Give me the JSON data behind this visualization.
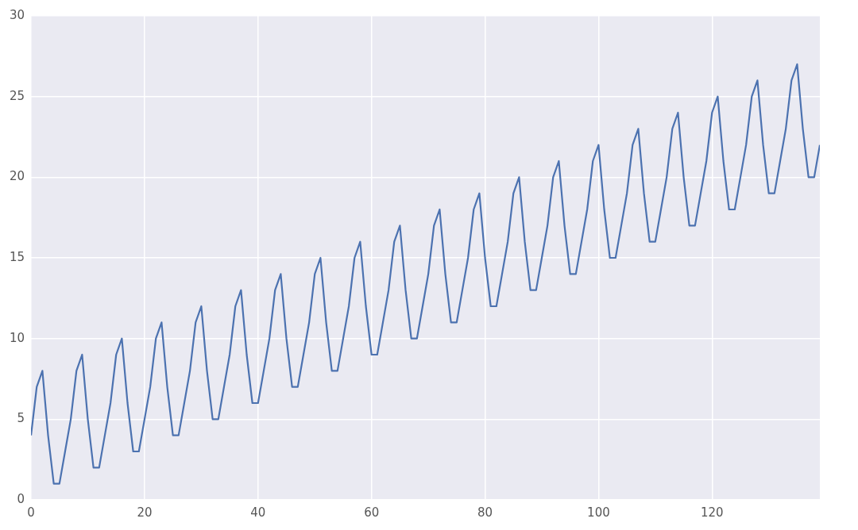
{
  "chart_data": {
    "type": "line",
    "x": [
      0,
      1,
      2,
      3,
      4,
      5,
      6,
      7,
      8,
      9,
      10,
      11,
      12,
      13,
      14,
      15,
      16,
      17,
      18,
      19,
      20,
      21,
      22,
      23,
      24,
      25,
      26,
      27,
      28,
      29,
      30,
      31,
      32,
      33,
      34,
      35,
      36,
      37,
      38,
      39,
      40,
      41,
      42,
      43,
      44,
      45,
      46,
      47,
      48,
      49,
      50,
      51,
      52,
      53,
      54,
      55,
      56,
      57,
      58,
      59,
      60,
      61,
      62,
      63,
      64,
      65,
      66,
      67,
      68,
      69,
      70,
      71,
      72,
      73,
      74,
      75,
      76,
      77,
      78,
      79,
      80,
      81,
      82,
      83,
      84,
      85,
      86,
      87,
      88,
      89,
      90,
      91,
      92,
      93,
      94,
      95,
      96,
      97,
      98,
      99,
      100,
      101,
      102,
      103,
      104,
      105,
      106,
      107,
      108,
      109,
      110,
      111,
      112,
      113,
      114,
      115,
      116,
      117,
      118,
      119,
      120,
      121,
      122,
      123,
      124,
      125,
      126,
      127,
      128,
      129,
      130,
      131,
      132,
      133,
      134,
      135,
      136,
      137,
      138,
      139
    ],
    "series": [
      {
        "color": "#4c72b0",
        "values": [
          4,
          7,
          8,
          4,
          1,
          1,
          3,
          5,
          8,
          9,
          5,
          2,
          2,
          4,
          6,
          9,
          10,
          6,
          3,
          3,
          5,
          7,
          10,
          11,
          7,
          4,
          4,
          6,
          8,
          11,
          12,
          8,
          5,
          5,
          7,
          9,
          12,
          13,
          9,
          6,
          6,
          8,
          10,
          13,
          14,
          10,
          7,
          7,
          9,
          11,
          14,
          15,
          11,
          8,
          8,
          10,
          12,
          15,
          16,
          12,
          9,
          9,
          11,
          13,
          16,
          17,
          13,
          10,
          10,
          12,
          14,
          17,
          18,
          14,
          11,
          11,
          13,
          15,
          18,
          19,
          15,
          12,
          12,
          14,
          16,
          19,
          20,
          16,
          13,
          13,
          15,
          17,
          20,
          21,
          17,
          14,
          14,
          16,
          18,
          21,
          22,
          18,
          15,
          15,
          17,
          19,
          22,
          23,
          19,
          16,
          16,
          18,
          20,
          23,
          24,
          20,
          17,
          17,
          19,
          21,
          24,
          25,
          21,
          18,
          18,
          20,
          22,
          25,
          26,
          22,
          19,
          19,
          21,
          23,
          26,
          27,
          23,
          20,
          20,
          22
        ]
      }
    ],
    "xlim": [
      0,
      139
    ],
    "xticks": [
      0,
      20,
      40,
      60,
      80,
      100,
      120
    ],
    "ylim": [
      0,
      30
    ],
    "yticks": [
      0,
      5,
      10,
      15,
      20,
      25,
      30
    ],
    "grid": true
  }
}
